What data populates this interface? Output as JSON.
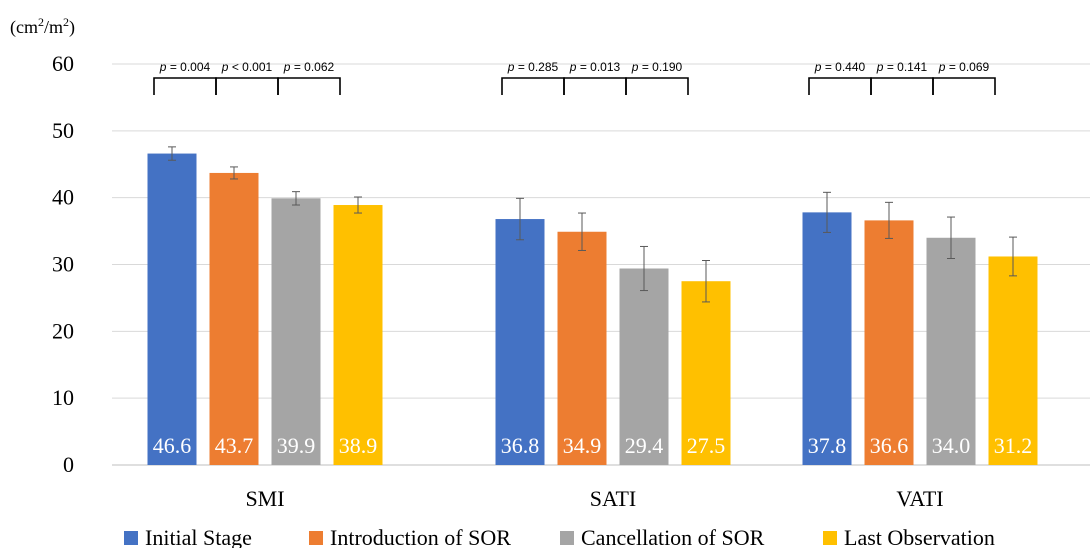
{
  "chart_data": {
    "type": "bar",
    "y_unit_label": "(cm²/m²)",
    "categories": [
      "SMI",
      "SATI",
      "VATI"
    ],
    "series": [
      {
        "name": "Initial Stage",
        "color": "#4472C4",
        "values": [
          46.6,
          36.8,
          37.8
        ],
        "errors": [
          1.0,
          3.1,
          3.0
        ],
        "value_labels": [
          "46.6",
          "36.8",
          "37.8"
        ]
      },
      {
        "name": "Introduction of SOR",
        "color": "#ED7D31",
        "values": [
          43.7,
          34.9,
          36.6
        ],
        "errors": [
          0.9,
          2.8,
          2.7
        ],
        "value_labels": [
          "43.7",
          "34.9",
          "36.6"
        ]
      },
      {
        "name": "Cancellation of SOR",
        "color": "#A5A5A5",
        "values": [
          39.9,
          29.4,
          34.0
        ],
        "errors": [
          1.0,
          3.3,
          3.1
        ],
        "value_labels": [
          "39.9",
          "29.4",
          "34.0"
        ]
      },
      {
        "name": "Last Observation",
        "color": "#FFC000",
        "values": [
          38.9,
          27.5,
          31.2
        ],
        "errors": [
          1.2,
          3.1,
          2.9
        ],
        "value_labels": [
          "38.9",
          "27.5",
          "31.2"
        ]
      }
    ],
    "ylim": [
      0,
      60
    ],
    "yticks": [
      0,
      10,
      20,
      30,
      40,
      50,
      60
    ],
    "grid": true,
    "legend": "bottom",
    "significance": [
      {
        "category": "SMI",
        "labels": [
          "p = 0.004",
          "p < 0.001",
          "p = 0.062"
        ]
      },
      {
        "category": "SATI",
        "labels": [
          "p = 0.285",
          "p = 0.013",
          "p = 0.190"
        ]
      },
      {
        "category": "VATI",
        "labels": [
          "p = 0.440",
          "p = 0.141",
          "p = 0.069"
        ]
      }
    ]
  }
}
